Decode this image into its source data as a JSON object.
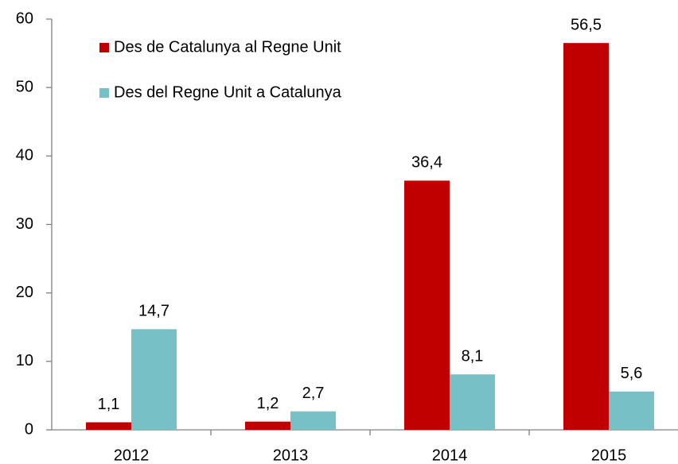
{
  "chart_data": {
    "type": "bar",
    "categories": [
      "2012",
      "2013",
      "2014",
      "2015"
    ],
    "series": [
      {
        "name": "Des de Catalunya al Regne Unit",
        "color": "#c00000",
        "values": [
          1.1,
          1.2,
          36.4,
          56.5
        ],
        "value_labels": [
          "1,1",
          "1,2",
          "36,4",
          "56,5"
        ]
      },
      {
        "name": "Des del Regne Unit a Catalunya",
        "color": "#77c1c6",
        "values": [
          14.7,
          2.7,
          8.1,
          5.6
        ],
        "value_labels": [
          "14,7",
          "2,7",
          "8,1",
          "5,6"
        ]
      }
    ],
    "ylim": [
      0,
      60
    ],
    "yticks": [
      0,
      10,
      20,
      30,
      40,
      50,
      60
    ],
    "grid": false,
    "legend": "top-left"
  }
}
